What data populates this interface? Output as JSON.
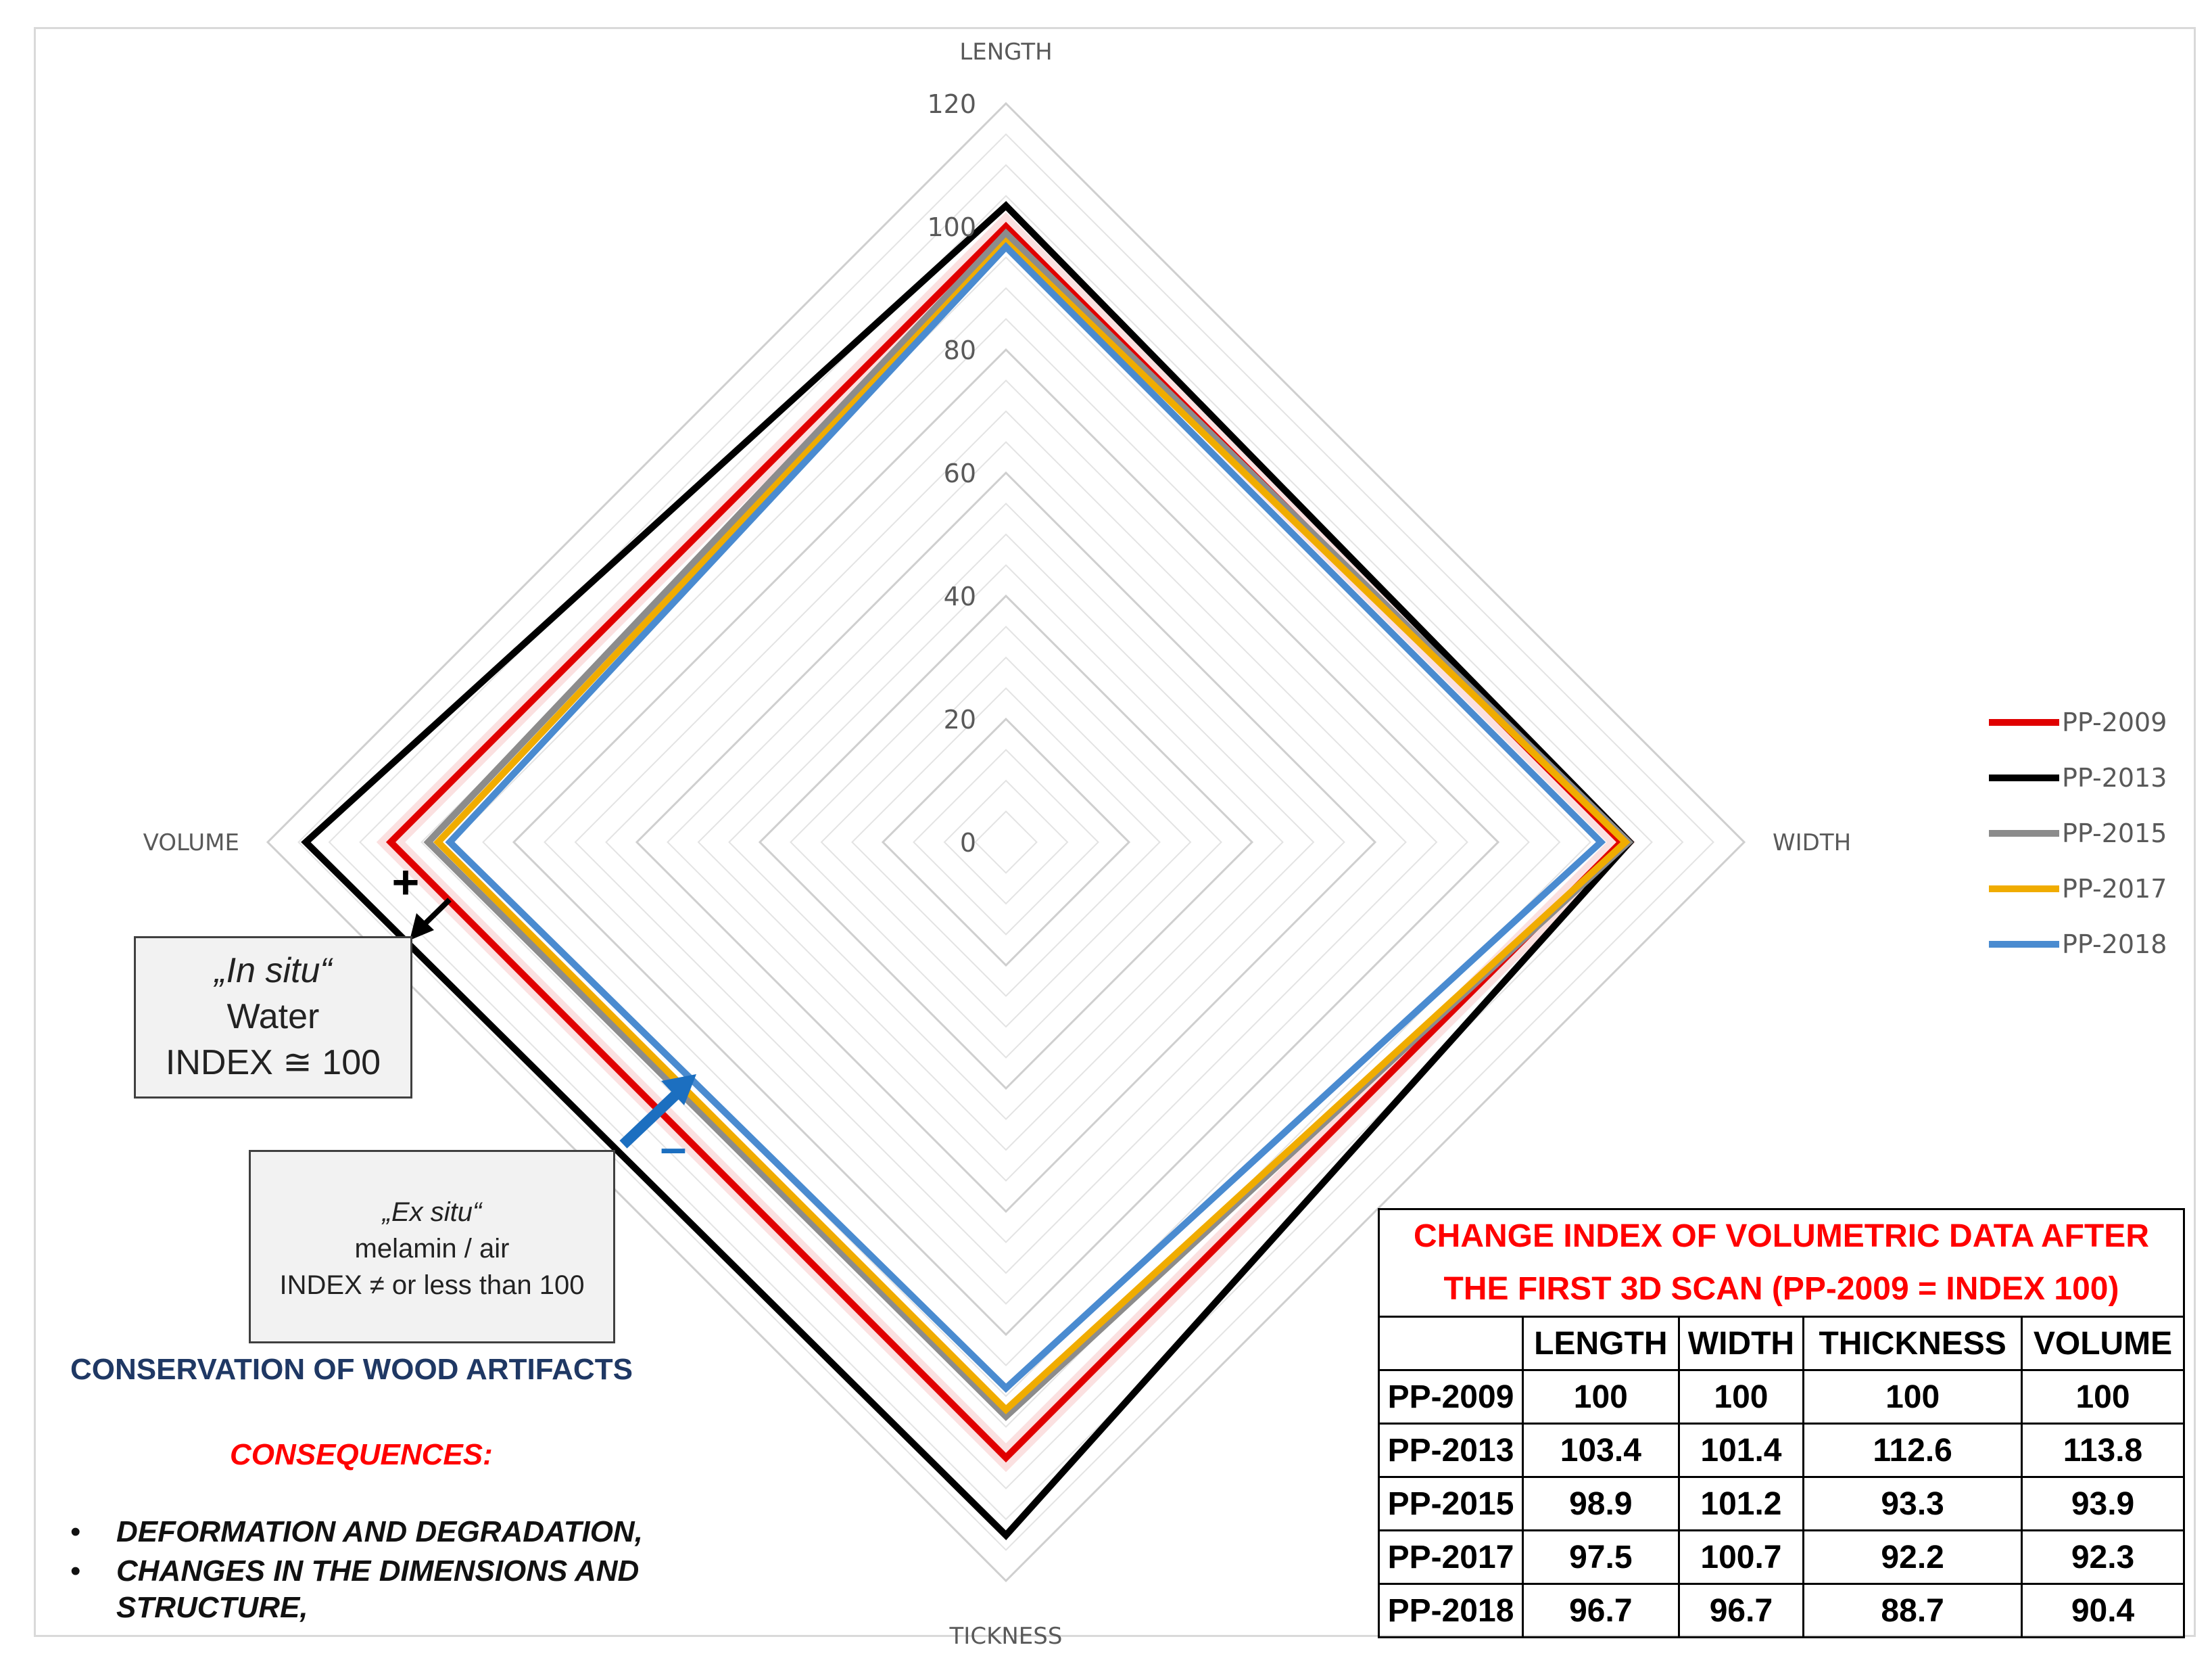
{
  "chart_data": {
    "type": "radar",
    "axes": [
      "LENGTH",
      "WIDTH",
      "TICKNESS",
      "VOLUME"
    ],
    "rlim": [
      0,
      120
    ],
    "ticks": [
      0,
      20,
      40,
      60,
      80,
      100,
      120
    ],
    "grid": true,
    "legend_position": "right",
    "series": [
      {
        "name": "PP-2009",
        "color": "#e00000",
        "values": [
          100,
          100,
          100,
          100
        ]
      },
      {
        "name": "PP-2013",
        "color": "#000000",
        "values": [
          103.4,
          101.4,
          112.6,
          113.8
        ]
      },
      {
        "name": "PP-2015",
        "color": "#8c8c8c",
        "values": [
          98.9,
          101.2,
          93.3,
          93.9
        ]
      },
      {
        "name": "PP-2017",
        "color": "#f0ac00",
        "values": [
          97.5,
          100.7,
          92.2,
          92.3
        ]
      },
      {
        "name": "PP-2018",
        "color": "#4a8bd0",
        "values": [
          96.7,
          96.7,
          88.7,
          90.4
        ]
      }
    ]
  },
  "annotations": {
    "plus_sign": "+",
    "minus_sign": "–",
    "insitu": {
      "line1": "„In situ“",
      "line2": "Water",
      "line3": "INDEX ≅ 100"
    },
    "exsitu": {
      "line1": "„Ex situ“",
      "line2": "melamin / air",
      "line3": "INDEX ≠ or less than 100"
    }
  },
  "notes": {
    "title": "CONSERVATION OF WOOD ARTIFACTS",
    "subtitle": "CONSEQUENCES:",
    "bullets": [
      "DEFORMATION AND DEGRADATION,",
      "CHANGES IN THE DIMENSIONS AND",
      "STRUCTURE,"
    ],
    "bullet_char": "•"
  },
  "table": {
    "caption_line1": "CHANGE INDEX OF VOLUMETRIC DATA AFTER",
    "caption_line2": "THE FIRST 3D SCAN (PP-2009 = INDEX 100)",
    "headers": [
      "",
      "LENGTH",
      "WIDTH",
      "THICKNESS",
      "VOLUME"
    ],
    "rows": [
      [
        "PP-2009",
        "100",
        "100",
        "100",
        "100"
      ],
      [
        "PP-2013",
        "103.4",
        "101.4",
        "112.6",
        "113.8"
      ],
      [
        "PP-2015",
        "98.9",
        "101.2",
        "93.3",
        "93.9"
      ],
      [
        "PP-2017",
        "97.5",
        "100.7",
        "92.2",
        "92.3"
      ],
      [
        "PP-2018",
        "96.7",
        "96.7",
        "88.7",
        "90.4"
      ]
    ]
  }
}
